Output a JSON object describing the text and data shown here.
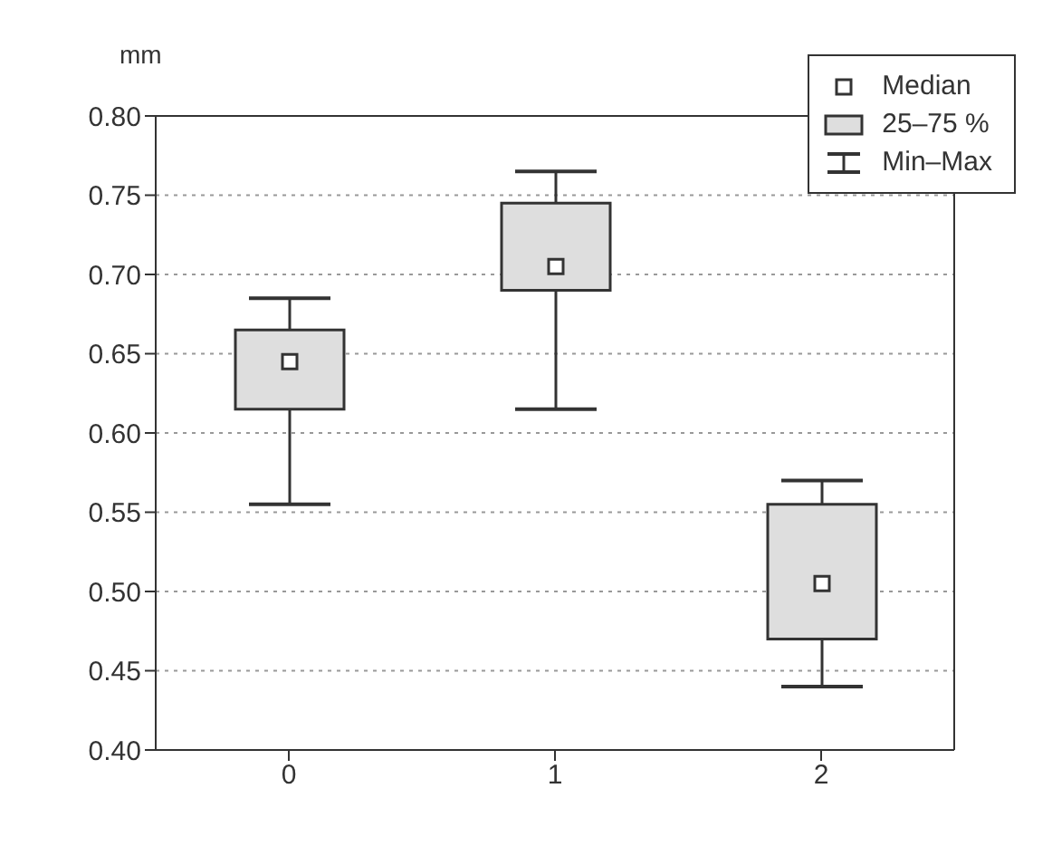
{
  "chart_data": {
    "type": "box",
    "ylabel": "mm",
    "categories": [
      "0",
      "1",
      "2"
    ],
    "series": [
      {
        "color": "#dedede",
        "boxes": [
          {
            "low": 0.555,
            "q1": 0.615,
            "median": 0.645,
            "q3": 0.665,
            "high": 0.685
          },
          {
            "low": 0.615,
            "q1": 0.69,
            "median": 0.705,
            "q3": 0.745,
            "high": 0.765
          },
          {
            "low": 0.44,
            "q1": 0.47,
            "median": 0.505,
            "q3": 0.555,
            "high": 0.57
          }
        ]
      }
    ],
    "ylim": [
      0.4,
      0.8
    ],
    "yticks": [
      {
        "value": 0.4,
        "label": "0.40"
      },
      0.45,
      {
        "value": 0.5,
        "label": "0.50"
      },
      0.55,
      {
        "value": 0.6,
        "label": "0.60"
      },
      0.65,
      {
        "value": 0.7,
        "label": "0.70"
      },
      0.75,
      {
        "value": 0.8,
        "label": "0.80"
      }
    ],
    "grid": "y",
    "marker": "square",
    "annotations": [
      "Median",
      "25–75 %",
      "Min–Max"
    ]
  }
}
